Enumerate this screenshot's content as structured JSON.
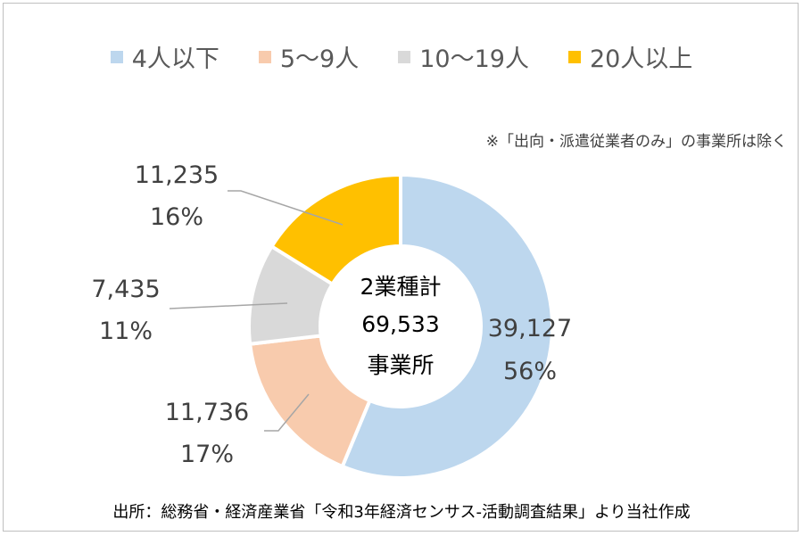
{
  "chart_data": {
    "type": "pie",
    "variant": "donut",
    "categories": [
      "4人以下",
      "5～9人",
      "10～19人",
      "20人以上"
    ],
    "values": [
      39127,
      11736,
      7435,
      11235
    ],
    "percent_labels": [
      "56%",
      "17%",
      "11%",
      "16%"
    ],
    "value_labels": [
      "39,127",
      "11,736",
      "7,435",
      "11,235"
    ],
    "colors": [
      "#bdd7ee",
      "#f8cbad",
      "#d9d9d9",
      "#ffc000"
    ],
    "center_text": [
      "2業種計",
      "69,533",
      "事業所"
    ],
    "legend_position": "top",
    "note": "※「出向・派遣従業者のみ」の事業所は除く"
  },
  "source": "出所：総務省・経済産業省「令和3年経済センサス-活動調査結果」より当社作成"
}
